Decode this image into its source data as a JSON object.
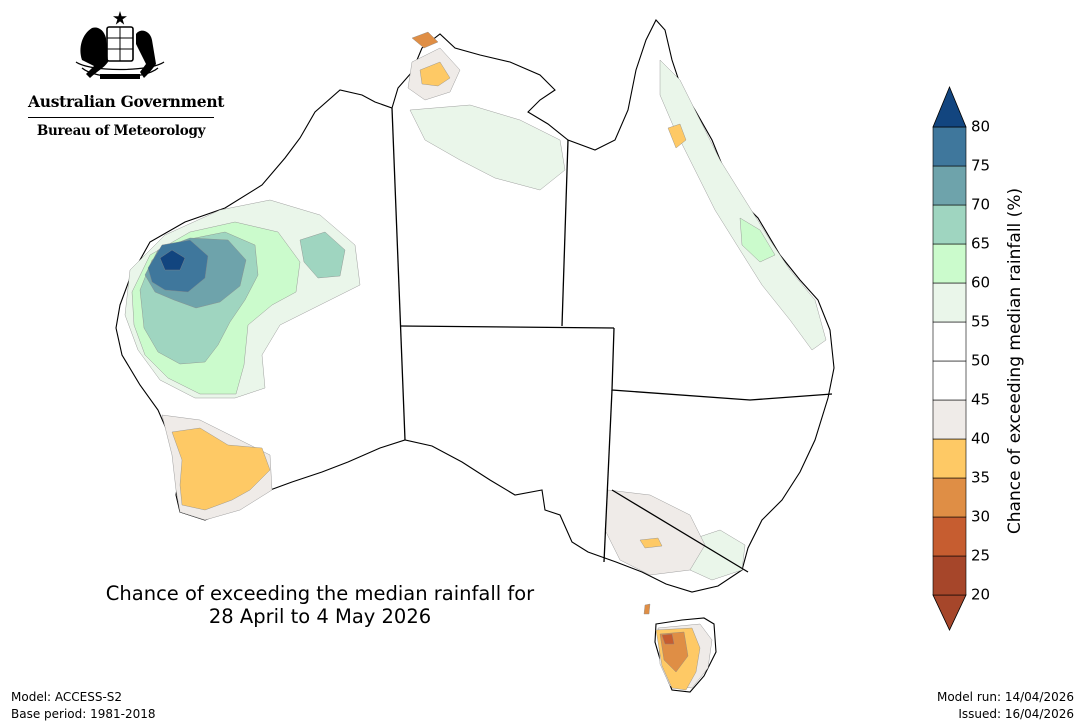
{
  "agency": {
    "government": "Australian Government",
    "bureau": "Bureau of Meteorology"
  },
  "map": {
    "title_line1": "Chance of exceeding the median rainfall for",
    "title_line2": "28 April to 4 May 2026"
  },
  "legend": {
    "label": "Chance of exceeding median rainfall (%)",
    "ticks": [
      "20",
      "25",
      "30",
      "35",
      "40",
      "45",
      "50",
      "55",
      "60",
      "65",
      "70",
      "75",
      "80"
    ],
    "colors": [
      "#a6462a",
      "#c65d30",
      "#df8e45",
      "#fec965",
      "#efebe8",
      "#ffffff",
      "#ffffff",
      "#eaf6ea",
      "#cbfbcc",
      "#9fd5c0",
      "#6ea3ab",
      "#3f779c",
      "#12457f"
    ]
  },
  "footer": {
    "model": "Model: ACCESS-S2",
    "base_period": "Base period: 1981-2018",
    "model_run": "Model run: 14/04/2026",
    "issued": "Issued: 16/04/2026"
  }
}
